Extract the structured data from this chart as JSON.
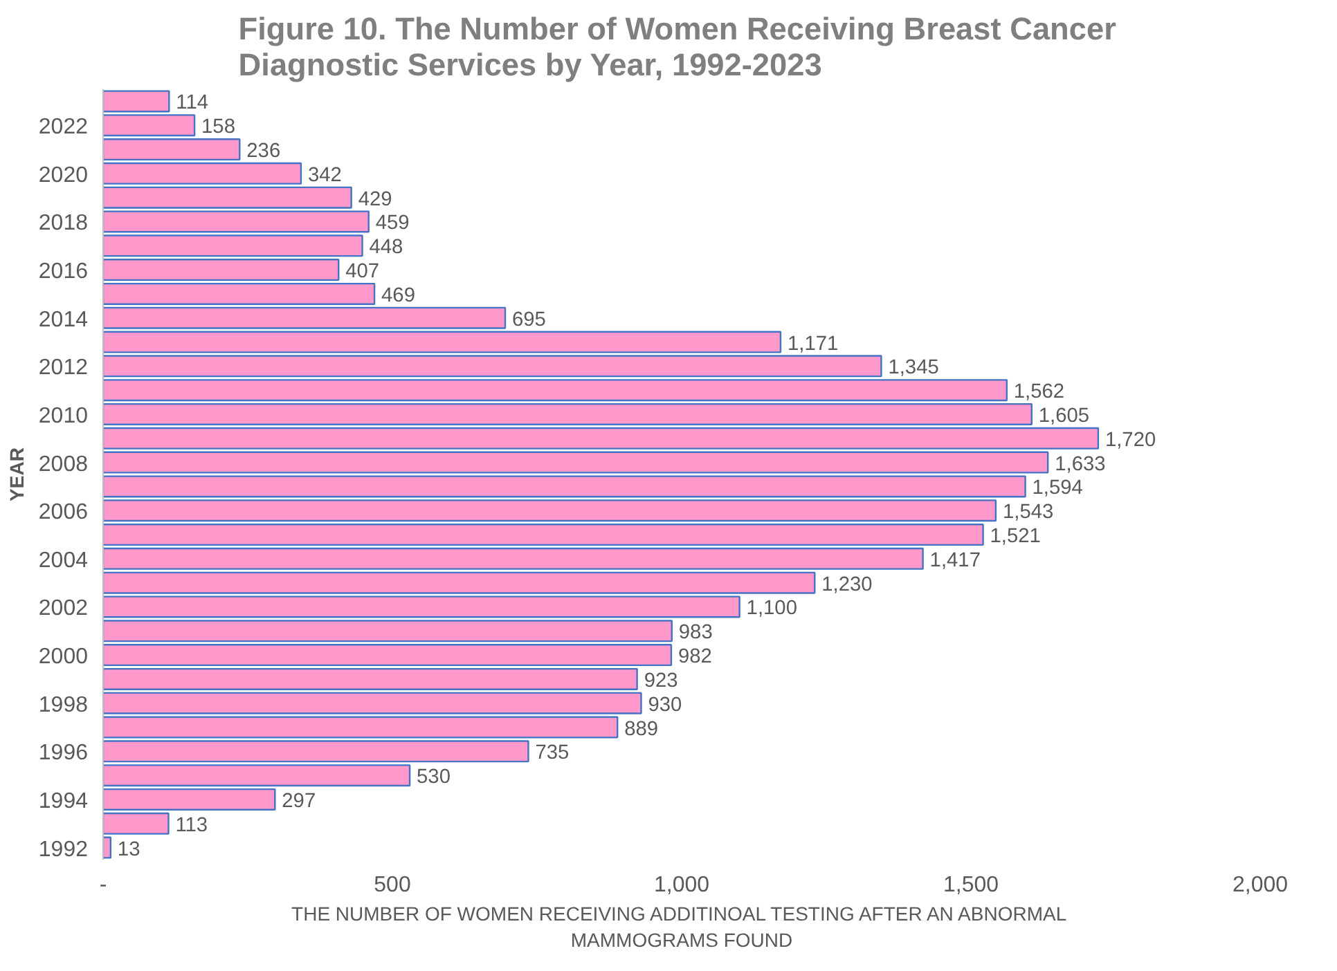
{
  "chart_data": {
    "type": "bar",
    "orientation": "horizontal",
    "title": "Figure 10.  The Number of Women Receiving Breast Cancer Diagnostic Services by Year, 1992-2023",
    "xlabel": "THE NUMBER OF WOMEN RECEIVING ADDITINOAL TESTING AFTER AN ABNORMAL MAMMOGRAMS FOUND",
    "ylabel": "YEAR",
    "categories": [
      null,
      "2022",
      null,
      "2020",
      null,
      "2018",
      null,
      "2016",
      null,
      "2014",
      null,
      "2012",
      null,
      "2010",
      null,
      "2008",
      null,
      "2006",
      null,
      "2004",
      null,
      "2002",
      null,
      "2000",
      null,
      "1998",
      null,
      "1996",
      null,
      "1994",
      null,
      "1992"
    ],
    "values": [
      114,
      158,
      236,
      342,
      429,
      459,
      448,
      407,
      469,
      695,
      1171,
      1345,
      1562,
      1605,
      1720,
      1633,
      1594,
      1543,
      1521,
      1417,
      1230,
      1100,
      983,
      982,
      923,
      930,
      889,
      735,
      530,
      297,
      113,
      13
    ],
    "value_labels": [
      "114",
      "158",
      "236",
      "342",
      "429",
      "459",
      "448",
      "407",
      "469",
      "695",
      "1,171",
      "1,345",
      "1,562",
      "1,605",
      "1,720",
      "1,633",
      "1,594",
      "1,543",
      "1,521",
      "1,417",
      "1,230",
      "1,100",
      "983",
      "982",
      "923",
      "930",
      "889",
      "735",
      "530",
      "297",
      "113",
      "13"
    ],
    "color": "#ff99cc",
    "xlim": [
      0,
      2000
    ],
    "xticks": [
      {
        "value": 0,
        "label": "-"
      },
      500,
      {
        "value": 1000,
        "label": "1,000"
      },
      {
        "value": 1500,
        "label": "1,500"
      },
      {
        "value": 2000,
        "label": "2,000"
      }
    ],
    "grid": false,
    "legend": false
  }
}
